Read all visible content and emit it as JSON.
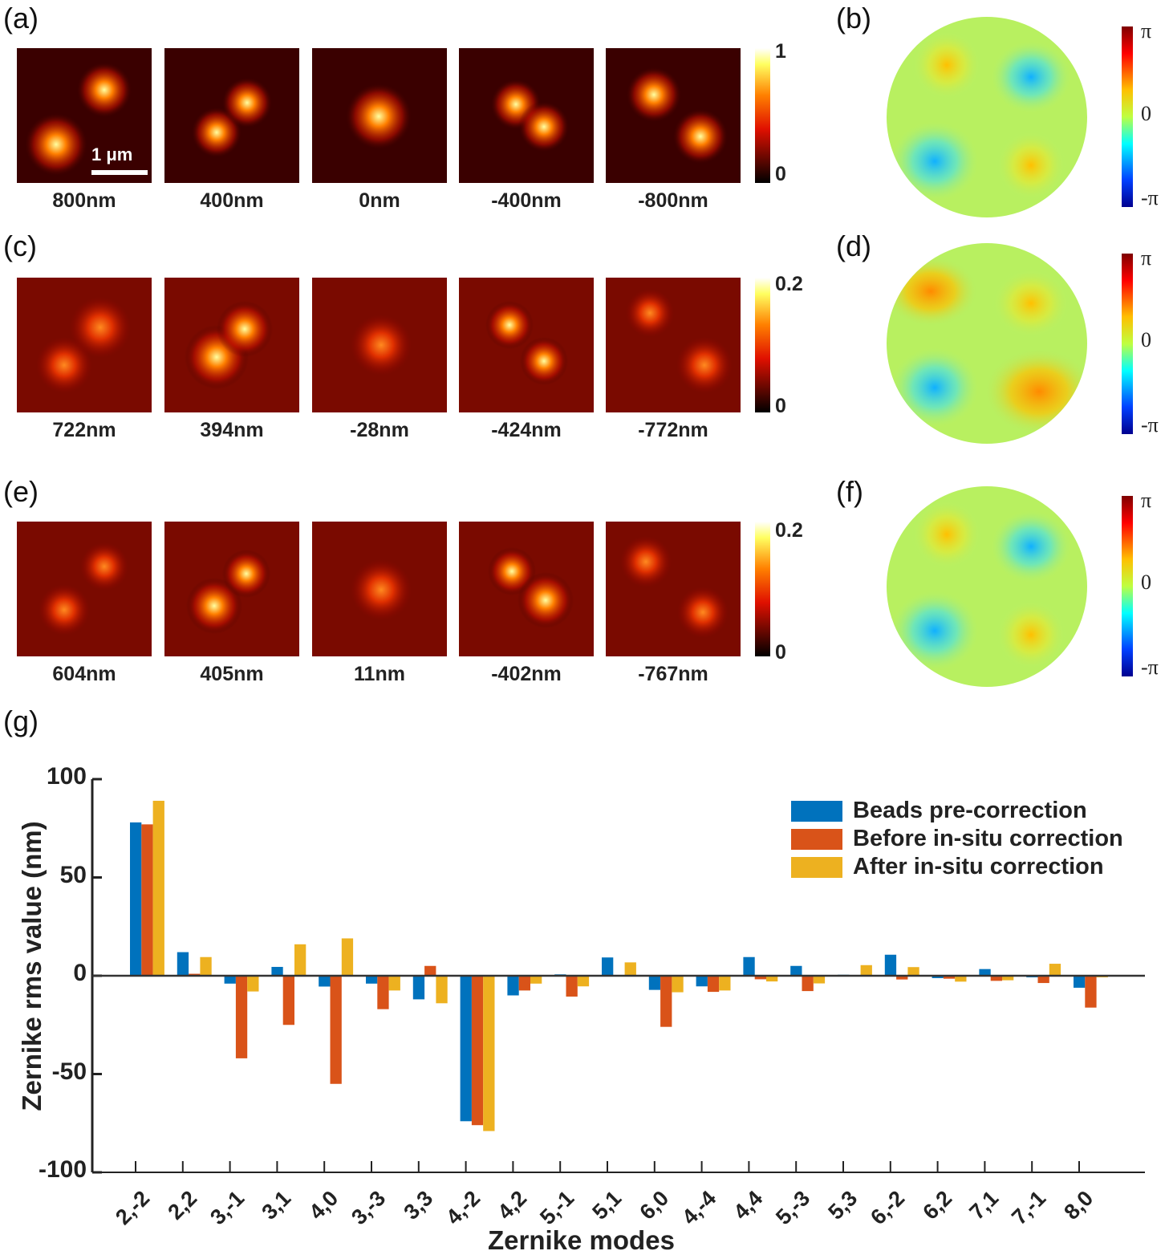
{
  "panels": {
    "a": {
      "label": "(a)",
      "captions": [
        "800nm",
        "400nm",
        "0nm",
        "-400nm",
        "-800nm"
      ],
      "colorbar": [
        "1",
        "0"
      ],
      "scalebar": "1 μm"
    },
    "b": {
      "label": "(b)"
    },
    "c": {
      "label": "(c)",
      "captions": [
        "722nm",
        "394nm",
        "-28nm",
        "-424nm",
        "-772nm"
      ],
      "colorbar": [
        "0.2",
        "0"
      ]
    },
    "d": {
      "label": "(d)"
    },
    "e": {
      "label": "(e)",
      "captions": [
        "604nm",
        "405nm",
        "11nm",
        "-402nm",
        "-767nm"
      ],
      "colorbar": [
        "0.2",
        "0"
      ]
    },
    "f": {
      "label": "(f)"
    },
    "g": {
      "label": "(g)"
    },
    "phase_colorbar": [
      "π",
      "0",
      "-π"
    ]
  },
  "chart_data": {
    "type": "bar",
    "xlabel": "Zernike modes",
    "ylabel": "Zernike rms value (nm)",
    "ylim": [
      -100,
      100
    ],
    "yticks": [
      "100",
      "50",
      "0",
      "-50",
      "-100"
    ],
    "legend_position": "top-right",
    "categories": [
      "2,-2",
      "2,2",
      "3,-1",
      "3,1",
      "4,0",
      "3,-3",
      "3,3",
      "4,-2",
      "4,2",
      "5,-1",
      "5,1",
      "6,0",
      "4,-4",
      "4,4",
      "5,-3",
      "5,3",
      "6,-2",
      "6,2",
      "7,1",
      "7,-1",
      "8,0"
    ],
    "series": [
      {
        "name": "Beads pre-correction",
        "color": "#0072bd",
        "values": [
          78,
          12,
          -4,
          4.5,
          -5.5,
          -4,
          -12,
          -74,
          -10,
          0.7,
          9.3,
          -7.2,
          -5.4,
          9.5,
          5,
          0.5,
          10.7,
          -1.2,
          3.4,
          -0.8,
          -6.1
        ]
      },
      {
        "name": "Before in-situ correction",
        "color": "#d95319",
        "values": [
          77,
          1,
          -42,
          -25,
          -55,
          -17,
          5,
          -76,
          -7.5,
          -10.6,
          0.3,
          -26,
          -8.2,
          -1.8,
          -7.8,
          0,
          -1.9,
          -1.5,
          -2.6,
          -3.7,
          -16.2
        ]
      },
      {
        "name": "After in-situ correction",
        "color": "#edb120",
        "values": [
          89,
          9.5,
          -8,
          16,
          19,
          -7.5,
          -14,
          -79,
          -4,
          -5.4,
          6.8,
          -8.4,
          -7.5,
          -2.9,
          -3.9,
          5.4,
          4.4,
          -3,
          -2.3,
          6.1,
          -0.8
        ]
      }
    ]
  }
}
